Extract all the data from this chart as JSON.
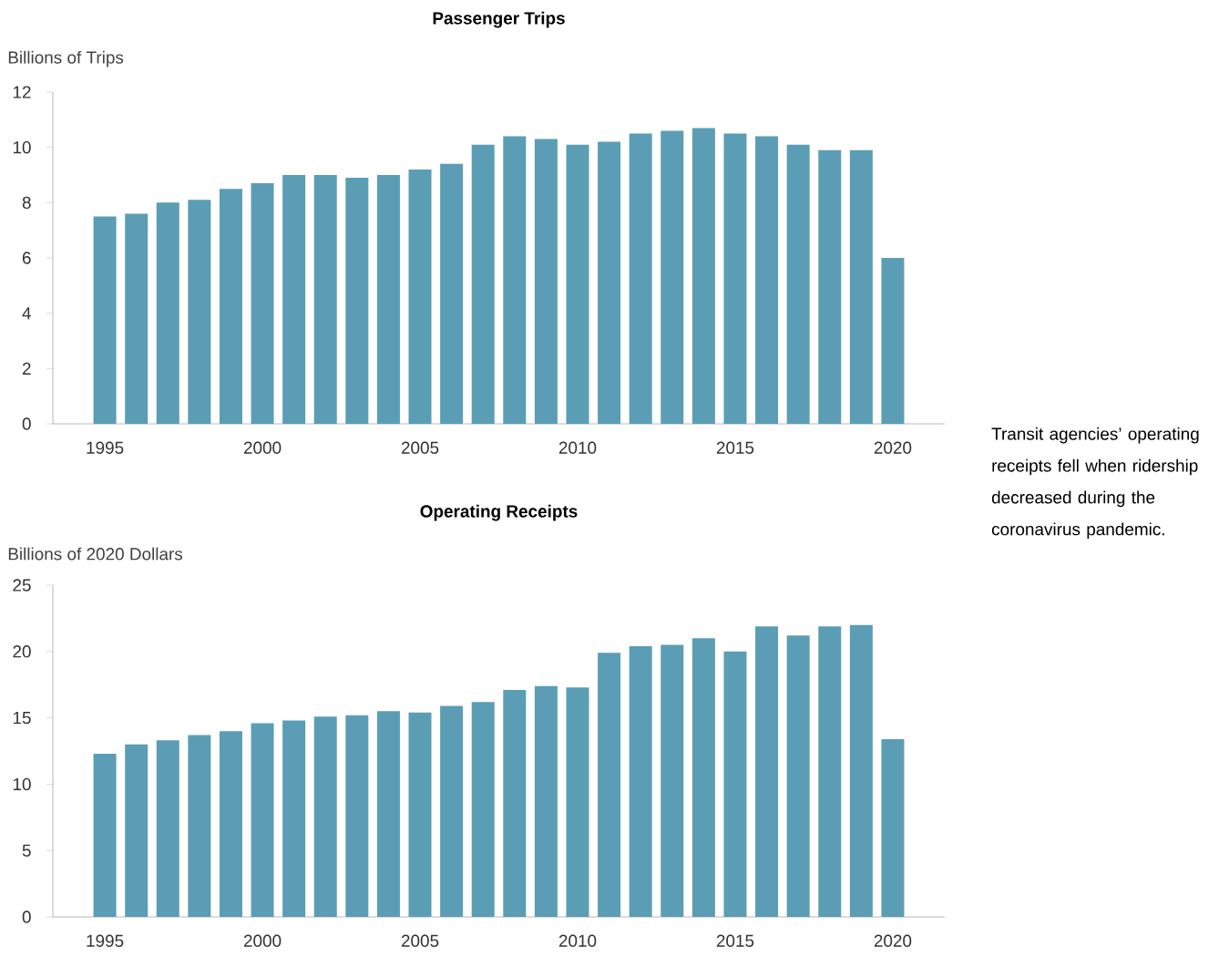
{
  "chart_data": [
    {
      "type": "bar",
      "title": "Passenger Trips",
      "ylabel": "Billions of Trips",
      "color": "#5b9db5",
      "x": [
        1995,
        1996,
        1997,
        1998,
        1999,
        2000,
        2001,
        2002,
        2003,
        2004,
        2005,
        2006,
        2007,
        2008,
        2009,
        2010,
        2011,
        2012,
        2013,
        2014,
        2015,
        2016,
        2017,
        2018,
        2019,
        2020
      ],
      "values": [
        7.5,
        7.6,
        8.0,
        8.1,
        8.5,
        8.7,
        9.0,
        9.0,
        8.9,
        9.0,
        9.2,
        9.4,
        10.1,
        10.4,
        10.3,
        10.1,
        10.2,
        10.5,
        10.6,
        10.7,
        10.5,
        10.4,
        10.1,
        9.9,
        9.9,
        6.0
      ],
      "xlim": [
        1993.35,
        2021.65
      ],
      "ylim": [
        0,
        12
      ],
      "xticks": [
        1995,
        2000,
        2005,
        2010,
        2015,
        2020
      ],
      "yticks": [
        0,
        2,
        4,
        6,
        8,
        10,
        12
      ],
      "annotations": [
        "Transit agencies’ operating receipts fell when ridership decreased during the coronavirus pandemic."
      ]
    },
    {
      "type": "bar",
      "title": "Operating Receipts",
      "ylabel": "Billions of 2020 Dollars",
      "color": "#5b9db5",
      "x": [
        1995,
        1996,
        1997,
        1998,
        1999,
        2000,
        2001,
        2002,
        2003,
        2004,
        2005,
        2006,
        2007,
        2008,
        2009,
        2010,
        2011,
        2012,
        2013,
        2014,
        2015,
        2016,
        2017,
        2018,
        2019,
        2020
      ],
      "values": [
        12.3,
        13.0,
        13.3,
        13.7,
        14.0,
        14.6,
        14.8,
        15.1,
        15.2,
        15.5,
        15.4,
        15.9,
        16.2,
        17.1,
        17.4,
        17.3,
        19.9,
        20.4,
        20.5,
        21.0,
        20.0,
        21.9,
        21.2,
        21.9,
        22.0,
        13.4
      ],
      "xlim": [
        1993.35,
        2021.65
      ],
      "ylim": [
        0,
        25
      ],
      "xticks": [
        1995,
        2000,
        2005,
        2010,
        2015,
        2020
      ],
      "yticks": [
        0,
        5,
        10,
        15,
        20,
        25
      ]
    }
  ]
}
